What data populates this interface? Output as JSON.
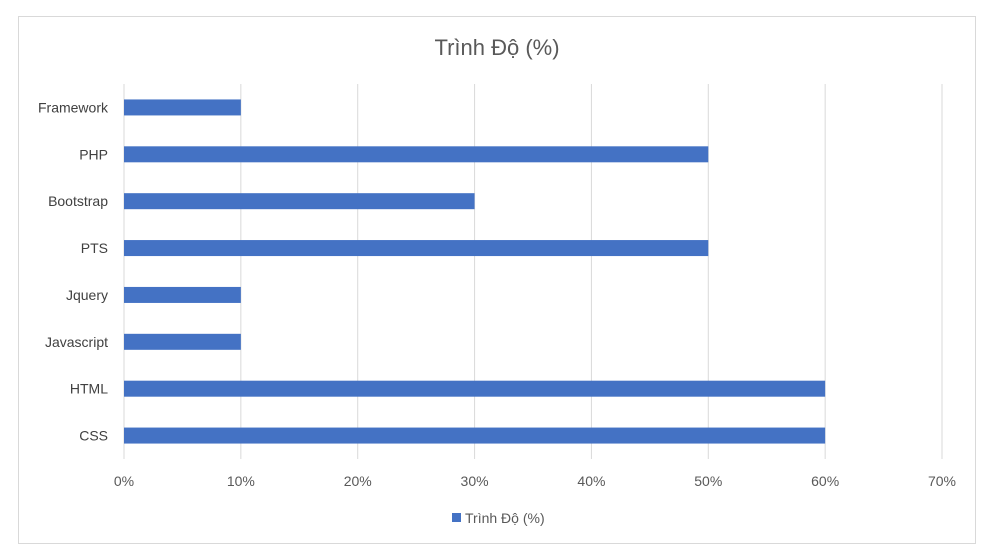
{
  "chart_data": {
    "type": "bar",
    "orientation": "horizontal",
    "title": "Trình Độ (%)",
    "categories": [
      "CSS",
      "HTML",
      "Javascript",
      "Jquery",
      "PTS",
      "Bootstrap",
      "PHP",
      "Framework"
    ],
    "series": [
      {
        "name": "Trình Độ (%)",
        "values": [
          60,
          60,
          10,
          10,
          50,
          30,
          50,
          10
        ],
        "color": "#4472c4"
      }
    ],
    "xlim": [
      0,
      70
    ],
    "xticks": [
      0,
      10,
      20,
      30,
      40,
      50,
      60,
      70
    ],
    "tick_format": "{v}%",
    "grid": true,
    "legend_position": "bottom"
  }
}
